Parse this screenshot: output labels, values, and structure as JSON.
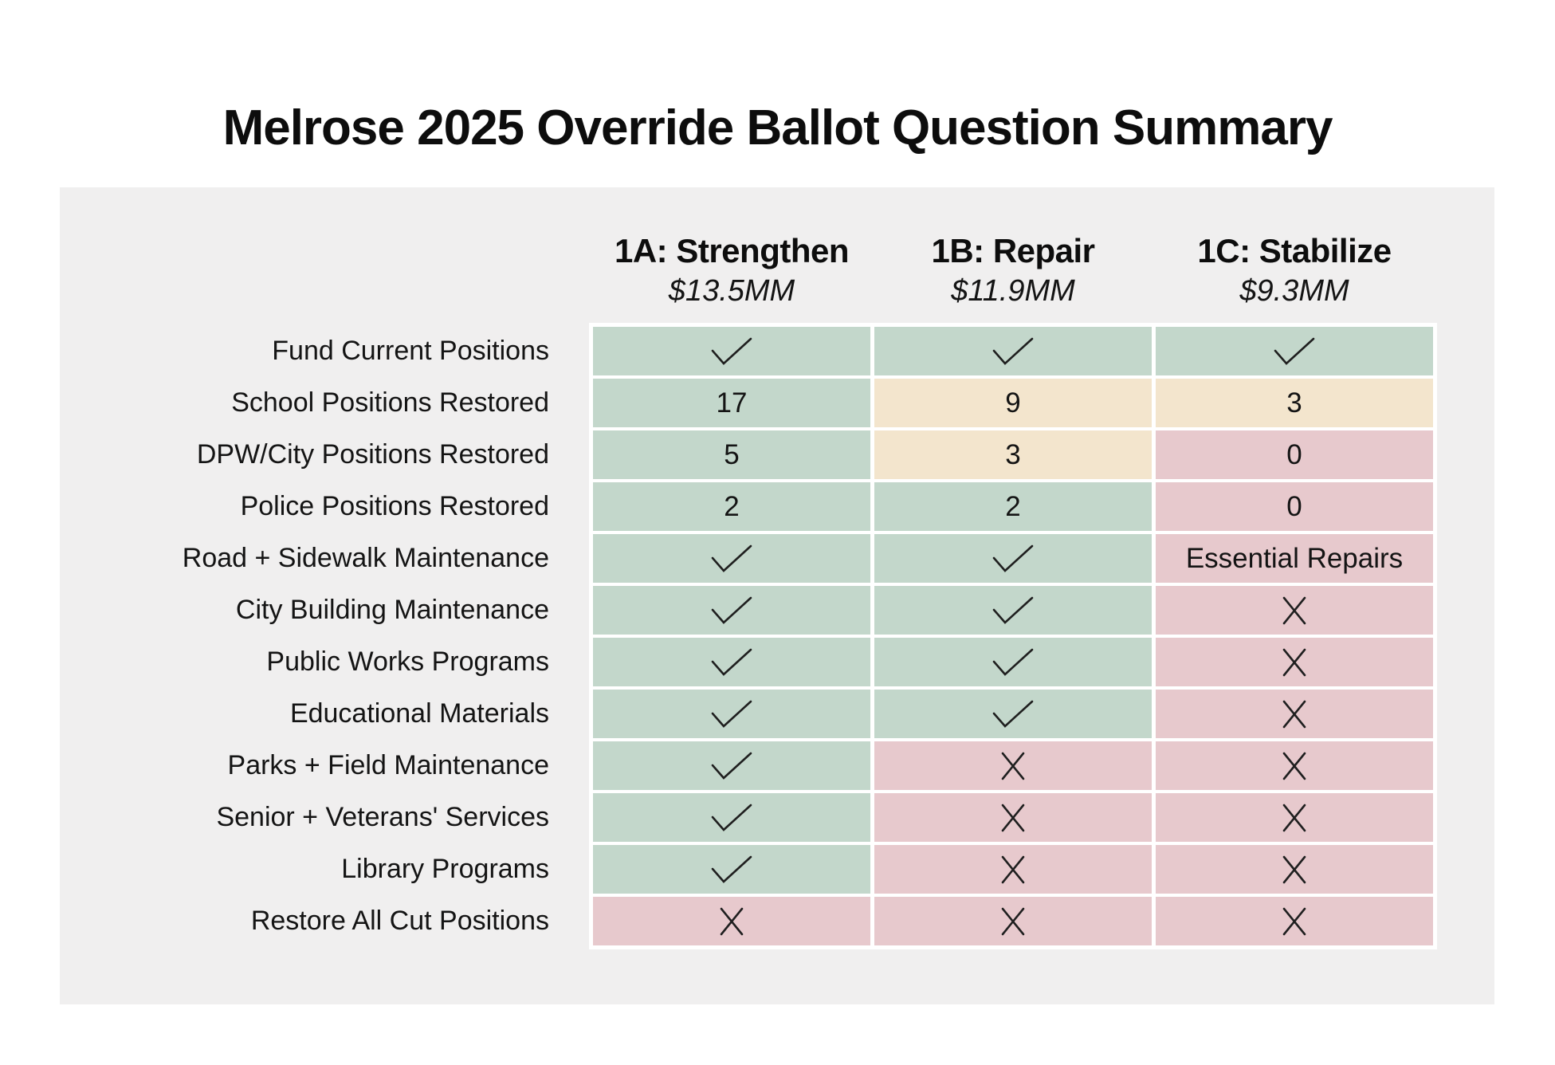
{
  "title": "Melrose 2025 Override Ballot Question Summary",
  "colors": {
    "panel": "#f0efef",
    "green": "#c3d7cb",
    "tan": "#f3e5cd",
    "pink": "#e7c9cd",
    "text": "#141414"
  },
  "table": {
    "columns": [
      {
        "label": "1A: Strengthen",
        "amount": "$13.5MM"
      },
      {
        "label": "1B: Repair",
        "amount": "$11.9MM"
      },
      {
        "label": "1C: Stabilize",
        "amount": "$9.3MM"
      }
    ],
    "rows": [
      {
        "label": "Fund Current Positions",
        "cells": [
          {
            "type": "check",
            "tone": "green"
          },
          {
            "type": "check",
            "tone": "green"
          },
          {
            "type": "check",
            "tone": "green"
          }
        ]
      },
      {
        "label": "School Positions Restored",
        "cells": [
          {
            "type": "text",
            "value": "17",
            "tone": "green"
          },
          {
            "type": "text",
            "value": "9",
            "tone": "tan"
          },
          {
            "type": "text",
            "value": "3",
            "tone": "tan"
          }
        ]
      },
      {
        "label": "DPW/City Positions Restored",
        "cells": [
          {
            "type": "text",
            "value": "5",
            "tone": "green"
          },
          {
            "type": "text",
            "value": "3",
            "tone": "tan"
          },
          {
            "type": "text",
            "value": "0",
            "tone": "pink"
          }
        ]
      },
      {
        "label": "Police Positions Restored",
        "cells": [
          {
            "type": "text",
            "value": "2",
            "tone": "green"
          },
          {
            "type": "text",
            "value": "2",
            "tone": "green"
          },
          {
            "type": "text",
            "value": "0",
            "tone": "pink"
          }
        ]
      },
      {
        "label": "Road + Sidewalk Maintenance",
        "cells": [
          {
            "type": "check",
            "tone": "green"
          },
          {
            "type": "check",
            "tone": "green"
          },
          {
            "type": "text",
            "value": "Essential Repairs",
            "tone": "pink"
          }
        ]
      },
      {
        "label": "City Building Maintenance",
        "cells": [
          {
            "type": "check",
            "tone": "green"
          },
          {
            "type": "check",
            "tone": "green"
          },
          {
            "type": "cross",
            "tone": "pink"
          }
        ]
      },
      {
        "label": "Public Works Programs",
        "cells": [
          {
            "type": "check",
            "tone": "green"
          },
          {
            "type": "check",
            "tone": "green"
          },
          {
            "type": "cross",
            "tone": "pink"
          }
        ]
      },
      {
        "label": "Educational Materials",
        "cells": [
          {
            "type": "check",
            "tone": "green"
          },
          {
            "type": "check",
            "tone": "green"
          },
          {
            "type": "cross",
            "tone": "pink"
          }
        ]
      },
      {
        "label": "Parks + Field Maintenance",
        "cells": [
          {
            "type": "check",
            "tone": "green"
          },
          {
            "type": "cross",
            "tone": "pink"
          },
          {
            "type": "cross",
            "tone": "pink"
          }
        ]
      },
      {
        "label": "Senior + Veterans' Services",
        "cells": [
          {
            "type": "check",
            "tone": "green"
          },
          {
            "type": "cross",
            "tone": "pink"
          },
          {
            "type": "cross",
            "tone": "pink"
          }
        ]
      },
      {
        "label": "Library Programs",
        "cells": [
          {
            "type": "check",
            "tone": "green"
          },
          {
            "type": "cross",
            "tone": "pink"
          },
          {
            "type": "cross",
            "tone": "pink"
          }
        ]
      },
      {
        "label": "Restore All Cut Positions",
        "cells": [
          {
            "type": "cross",
            "tone": "pink"
          },
          {
            "type": "cross",
            "tone": "pink"
          },
          {
            "type": "cross",
            "tone": "pink"
          }
        ]
      }
    ]
  },
  "chart_data": {
    "type": "table",
    "title": "Melrose 2025 Override Ballot Question Summary",
    "columns": [
      "1A: Strengthen $13.5MM",
      "1B: Repair $11.9MM",
      "1C: Stabilize $9.3MM"
    ],
    "rows": [
      [
        "Fund Current Positions",
        "✓",
        "✓",
        "✓"
      ],
      [
        "School Positions Restored",
        "17",
        "9",
        "3"
      ],
      [
        "DPW/City Positions Restored",
        "5",
        "3",
        "0"
      ],
      [
        "Police Positions Restored",
        "2",
        "2",
        "0"
      ],
      [
        "Road + Sidewalk Maintenance",
        "✓",
        "✓",
        "Essential Repairs"
      ],
      [
        "City Building Maintenance",
        "✓",
        "✓",
        "✗"
      ],
      [
        "Public Works Programs",
        "✓",
        "✓",
        "✗"
      ],
      [
        "Educational Materials",
        "✓",
        "✓",
        "✗"
      ],
      [
        "Parks + Field Maintenance",
        "✓",
        "✗",
        "✗"
      ],
      [
        "Senior + Veterans' Services",
        "✓",
        "✗",
        "✗"
      ],
      [
        "Library Programs",
        "✓",
        "✗",
        "✗"
      ],
      [
        "Restore All Cut Positions",
        "✗",
        "✗",
        "✗"
      ]
    ],
    "cell_tone_legend": {
      "green": "#c3d7cb",
      "tan": "#f3e5cd",
      "pink": "#e7c9cd"
    }
  }
}
